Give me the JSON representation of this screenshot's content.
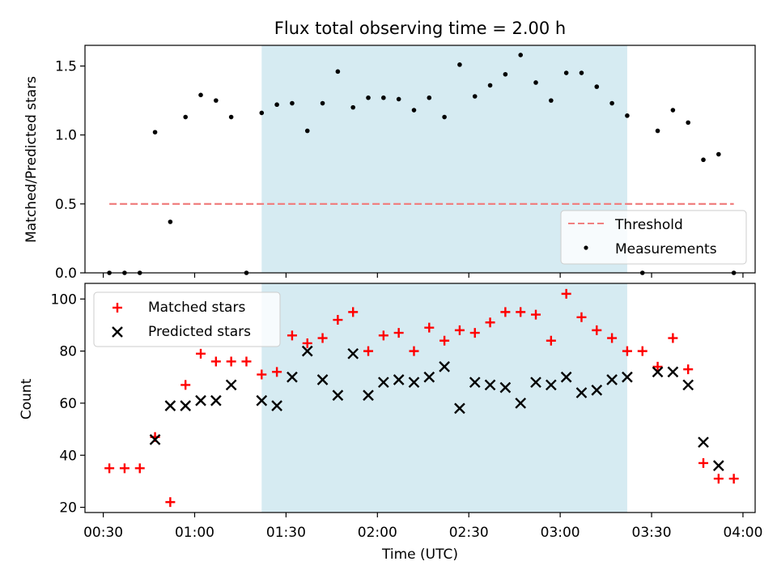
{
  "figure": {
    "title": "Flux total observing time = 2.00 h",
    "xlabel": "Time (UTC)"
  },
  "chart_data": [
    {
      "type": "scatter",
      "ylabel": "Matched/Predicted stars",
      "ylim": [
        0,
        1.65
      ],
      "yticks": [
        0.0,
        0.5,
        1.0,
        1.5
      ],
      "ytick_labels": [
        "0.0",
        "0.5",
        "1.0",
        "1.5"
      ],
      "xlim": [
        "00:24",
        "04:04"
      ],
      "shaded_span": [
        "01:22",
        "03:22"
      ],
      "shade_color": "#add8e6",
      "legend_placement": "lower-right",
      "threshold": {
        "name": "Threshold",
        "value": 0.5,
        "x": [
          "00:32",
          "03:57"
        ],
        "color": "#f08080"
      },
      "series": [
        {
          "name": "Measurements",
          "color": "#000000",
          "x": [
            "00:32",
            "00:37",
            "00:42",
            "00:47",
            "00:52",
            "00:57",
            "01:02",
            "01:07",
            "01:12",
            "01:17",
            "01:22",
            "01:27",
            "01:32",
            "01:37",
            "01:42",
            "01:47",
            "01:52",
            "01:57",
            "02:02",
            "02:07",
            "02:12",
            "02:17",
            "02:22",
            "02:27",
            "02:32",
            "02:37",
            "02:42",
            "02:47",
            "02:52",
            "02:57",
            "03:02",
            "03:07",
            "03:12",
            "03:17",
            "03:22",
            "03:27",
            "03:32",
            "03:37",
            "03:42",
            "03:47",
            "03:52",
            "03:57"
          ],
          "y": [
            0.0,
            0.0,
            0.0,
            1.02,
            0.37,
            1.13,
            1.29,
            1.25,
            1.13,
            0.0,
            1.16,
            1.22,
            1.23,
            1.03,
            1.23,
            1.46,
            1.2,
            1.27,
            1.27,
            1.26,
            1.18,
            1.27,
            1.13,
            1.51,
            1.28,
            1.36,
            1.44,
            1.58,
            1.38,
            1.25,
            1.45,
            1.45,
            1.35,
            1.23,
            1.14,
            0.0,
            1.03,
            1.18,
            1.09,
            0.82,
            0.86,
            0.0
          ]
        }
      ]
    },
    {
      "type": "scatter",
      "ylabel": "Count",
      "ylim": [
        18,
        106
      ],
      "yticks": [
        20,
        40,
        60,
        80,
        100
      ],
      "ytick_labels": [
        "20",
        "40",
        "60",
        "80",
        "100"
      ],
      "xlim": [
        "00:24",
        "04:04"
      ],
      "xticks": [
        "00:30",
        "01:00",
        "01:30",
        "02:00",
        "02:30",
        "03:00",
        "03:30",
        "04:00"
      ],
      "xtick_labels": [
        "00:30",
        "01:00",
        "01:30",
        "02:00",
        "02:30",
        "03:00",
        "03:30",
        "04:00"
      ],
      "shaded_span": [
        "01:22",
        "03:22"
      ],
      "shade_color": "#add8e6",
      "legend_placement": "upper-left",
      "series": [
        {
          "name": "Matched stars",
          "marker": "plus",
          "color": "#ff0000",
          "x": [
            "00:32",
            "00:37",
            "00:42",
            "00:47",
            "00:52",
            "00:57",
            "01:02",
            "01:07",
            "01:12",
            "01:17",
            "01:22",
            "01:27",
            "01:32",
            "01:37",
            "01:42",
            "01:47",
            "01:52",
            "01:57",
            "02:02",
            "02:07",
            "02:12",
            "02:17",
            "02:22",
            "02:27",
            "02:32",
            "02:37",
            "02:42",
            "02:47",
            "02:52",
            "02:57",
            "03:02",
            "03:07",
            "03:12",
            "03:17",
            "03:22",
            "03:27",
            "03:32",
            "03:37",
            "03:42",
            "03:47",
            "03:52",
            "03:57"
          ],
          "y": [
            35,
            35,
            35,
            47,
            22,
            67,
            79,
            76,
            76,
            76,
            71,
            72,
            86,
            83,
            85,
            92,
            95,
            80,
            86,
            87,
            80,
            89,
            84,
            88,
            87,
            91,
            95,
            95,
            94,
            84,
            102,
            93,
            88,
            85,
            80,
            80,
            74,
            85,
            73,
            37,
            31,
            31
          ]
        },
        {
          "name": "Predicted stars",
          "marker": "x",
          "color": "#000000",
          "x": [
            "00:47",
            "00:52",
            "00:57",
            "01:02",
            "01:07",
            "01:12",
            "01:22",
            "01:27",
            "01:32",
            "01:37",
            "01:42",
            "01:47",
            "01:52",
            "01:57",
            "02:02",
            "02:07",
            "02:12",
            "02:17",
            "02:22",
            "02:27",
            "02:32",
            "02:37",
            "02:42",
            "02:47",
            "02:52",
            "02:57",
            "03:02",
            "03:07",
            "03:12",
            "03:17",
            "03:22",
            "03:32",
            "03:37",
            "03:42",
            "03:47",
            "03:52"
          ],
          "y": [
            46,
            59,
            59,
            61,
            61,
            67,
            61,
            59,
            70,
            80,
            69,
            63,
            79,
            63,
            68,
            69,
            68,
            70,
            74,
            58,
            68,
            67,
            66,
            60,
            68,
            67,
            70,
            64,
            65,
            69,
            70,
            72,
            72,
            67,
            45,
            36
          ]
        }
      ]
    }
  ]
}
